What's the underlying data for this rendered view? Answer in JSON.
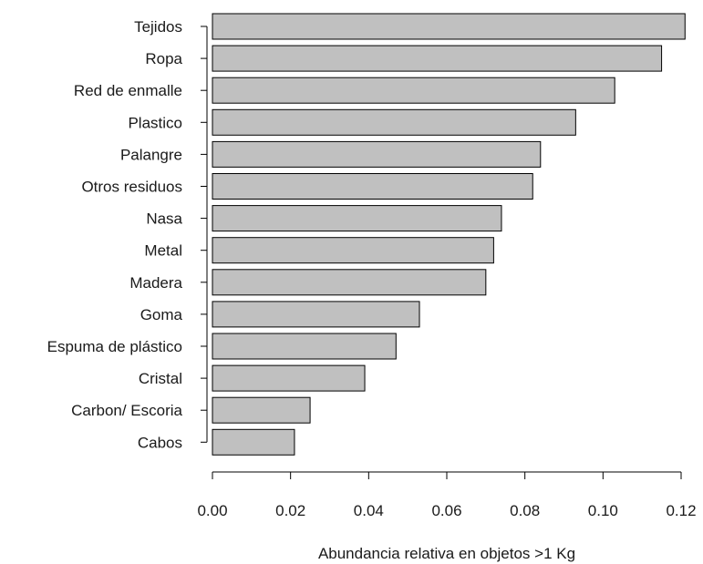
{
  "chart_data": {
    "type": "bar",
    "orientation": "horizontal",
    "title": "",
    "xlabel": "Abundancia relativa en objetos >1 Kg",
    "ylabel": "",
    "categories": [
      "Tejidos",
      "Ropa",
      "Red de enmalle",
      "Plastico",
      "Palangre",
      "Otros residuos",
      "Nasa",
      "Metal",
      "Madera",
      "Goma",
      "Espuma de plástico",
      "Cristal",
      "Carbon/ Escoria",
      "Cabos"
    ],
    "values": [
      0.121,
      0.115,
      0.103,
      0.093,
      0.084,
      0.082,
      0.074,
      0.072,
      0.07,
      0.053,
      0.047,
      0.039,
      0.025,
      0.021
    ],
    "xlim": [
      0,
      0.12
    ],
    "xticks": [
      "0.00",
      "0.02",
      "0.04",
      "0.06",
      "0.08",
      "0.10",
      "0.12"
    ],
    "bar_color": "#c0c0c0",
    "grid": false,
    "legend": "none"
  }
}
